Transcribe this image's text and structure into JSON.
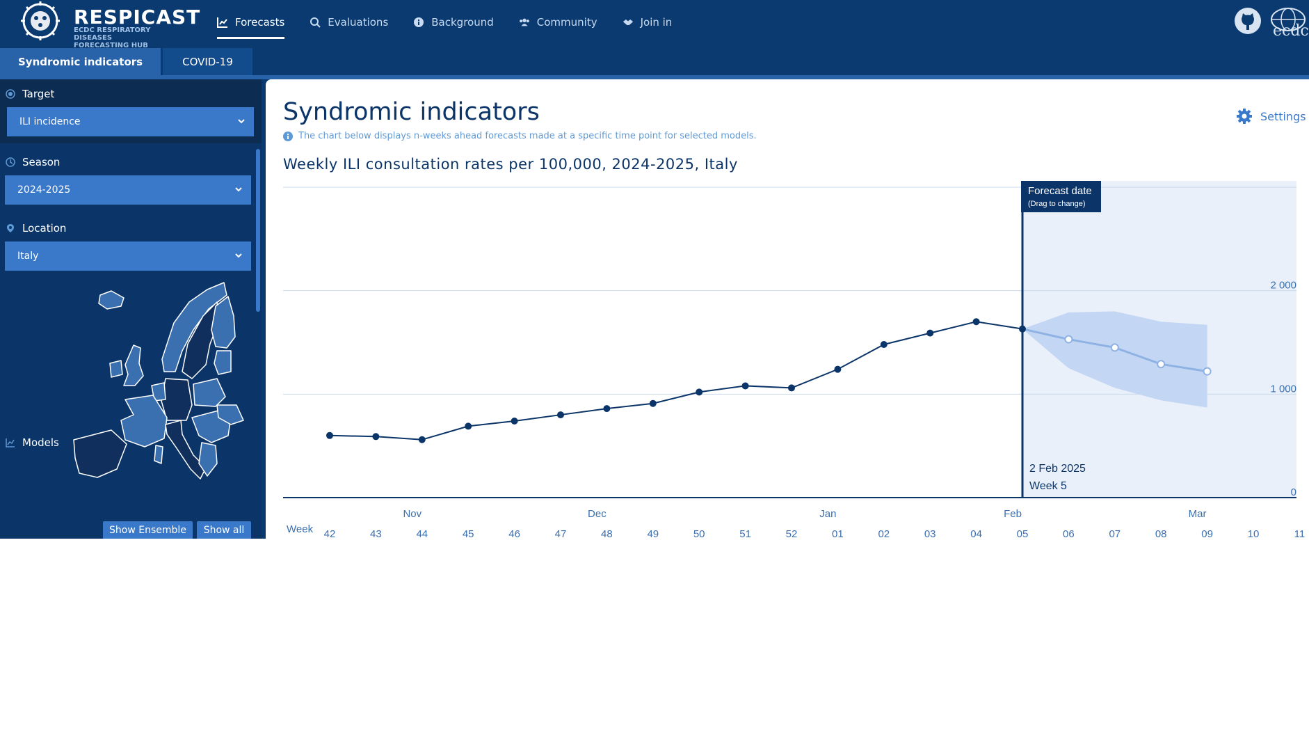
{
  "header": {
    "brand": "RESPICAST",
    "brand_sub_1": "ECDC RESPIRATORY DISEASES",
    "brand_sub_2": "FORECASTING HUB",
    "nav": [
      {
        "label": "Forecasts",
        "icon": "line-chart-icon",
        "active": true
      },
      {
        "label": "Evaluations",
        "icon": "magnify-chart-icon",
        "active": false
      },
      {
        "label": "Background",
        "icon": "info-icon",
        "active": false
      },
      {
        "label": "Community",
        "icon": "users-icon",
        "active": false
      },
      {
        "label": "Join in",
        "icon": "handshake-icon",
        "active": false
      }
    ],
    "ecdc_label": "ecdc"
  },
  "tabs": [
    {
      "label": "Syndromic indicators",
      "active": true
    },
    {
      "label": "COVID-19",
      "active": false
    }
  ],
  "sidebar": {
    "target_label": "Target",
    "target_value": "ILI incidence",
    "season_label": "Season",
    "season_value": "2024-2025",
    "location_label": "Location",
    "location_value": "Italy",
    "models_label": "Models",
    "show_ensemble": "Show Ensemble",
    "show_all": "Show all"
  },
  "main": {
    "title": "Syndromic indicators",
    "description": "The chart below displays n-weeks ahead forecasts made at a specific time point for selected models.",
    "settings_label": "Settings",
    "chart_title": "Weekly  ILI consultation rates per 100,000, 2024-2025,  Italy",
    "forecast_box_title": "Forecast date",
    "forecast_box_sub": "(Drag to change)",
    "forecast_date": "2  Feb 2025",
    "forecast_week": "Week 5",
    "week_axis_label": "Week"
  },
  "colors": {
    "navy": "#0a3a70",
    "select_blue": "#3a78c9",
    "forecast_band": "#c3d6f3",
    "observed_line": "#0b3568"
  },
  "chart_data": {
    "type": "line",
    "x_weeks": [
      "42",
      "43",
      "44",
      "45",
      "46",
      "47",
      "48",
      "49",
      "50",
      "51",
      "52",
      "01",
      "02",
      "03",
      "04",
      "05",
      "06",
      "07",
      "08",
      "09",
      "10",
      "11"
    ],
    "month_labels": [
      {
        "label": "Nov",
        "week": "44"
      },
      {
        "label": "Dec",
        "week": "48"
      },
      {
        "label": "Jan",
        "week": "01"
      },
      {
        "label": "Feb",
        "week": "05"
      },
      {
        "label": "Mar",
        "week": "09"
      }
    ],
    "y_ticks": [
      "0",
      "1 000",
      "2 000"
    ],
    "ylim": [
      0,
      3000
    ],
    "observed": {
      "weeks": [
        "42",
        "43",
        "44",
        "45",
        "46",
        "47",
        "48",
        "49",
        "50",
        "51",
        "52",
        "01",
        "02",
        "03",
        "04",
        "05"
      ],
      "values": [
        600,
        590,
        560,
        690,
        740,
        800,
        860,
        910,
        1020,
        1080,
        1060,
        1240,
        1480,
        1590,
        1700,
        1630
      ]
    },
    "forecast": {
      "weeks": [
        "05",
        "06",
        "07",
        "08",
        "09"
      ],
      "median": [
        1630,
        1530,
        1450,
        1290,
        1220
      ],
      "lower": [
        1630,
        1250,
        1060,
        940,
        870
      ],
      "upper": [
        1630,
        1790,
        1800,
        1700,
        1670
      ]
    },
    "forecast_week_index": 15
  }
}
